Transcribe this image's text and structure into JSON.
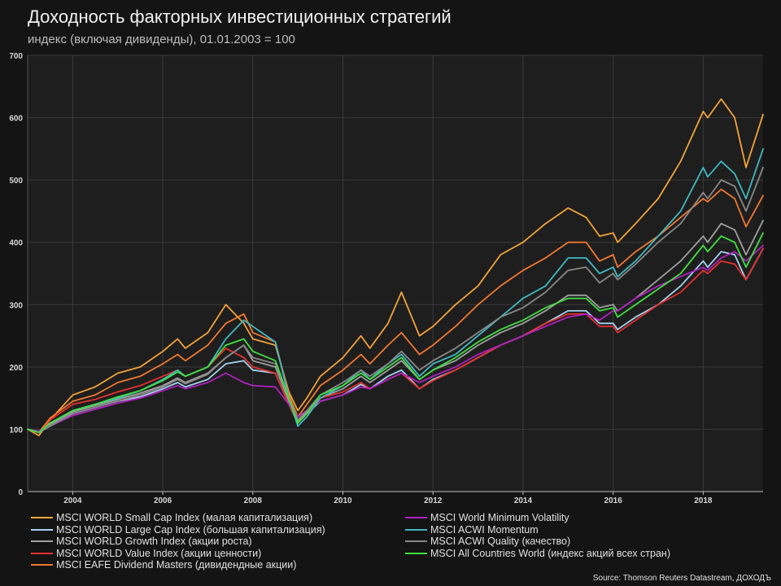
{
  "header": {
    "title": "Доходность факторных инвестиционных стратегий",
    "subtitle": "индекс (включая дивиденды), 01.01.2003 = 100"
  },
  "source": "Source: Thomson Reuters Datastream, ДОХОДЪ",
  "colors": {
    "background": "#141414",
    "plot_background": "#1e1e1e",
    "grid": "#3a3a3a"
  },
  "chart_data": {
    "type": "line",
    "title": "Доходность факторных инвестиционных стратегий",
    "subtitle": "индекс (включая дивиденды), 01.01.2003 = 100",
    "xlabel": "",
    "ylabel": "",
    "xlim": [
      2003.0,
      2019.33
    ],
    "ylim": [
      0,
      700
    ],
    "yticks": [
      0,
      100,
      200,
      300,
      400,
      500,
      600,
      700
    ],
    "xticks": [
      2004,
      2006,
      2008,
      2010,
      2012,
      2014,
      2016,
      2018
    ],
    "grid": true,
    "legend_position": "bottom",
    "x": [
      2003.0,
      2003.25,
      2003.5,
      2004.0,
      2004.5,
      2005.0,
      2005.5,
      2006.0,
      2006.33,
      2006.5,
      2007.0,
      2007.4,
      2007.8,
      2008.0,
      2008.5,
      2008.8,
      2009.0,
      2009.2,
      2009.5,
      2010.0,
      2010.4,
      2010.6,
      2011.0,
      2011.3,
      2011.7,
      2012.0,
      2012.5,
      2013.0,
      2013.5,
      2014.0,
      2014.5,
      2015.0,
      2015.4,
      2015.7,
      2016.0,
      2016.1,
      2016.5,
      2017.0,
      2017.5,
      2018.0,
      2018.1,
      2018.4,
      2018.7,
      2018.95,
      2019.33
    ],
    "series": [
      {
        "name": "MSCI WORLD Small Cap Index (малая капитализация)",
        "color": "#f2a33a",
        "values": [
          100,
          90,
          115,
          155,
          168,
          190,
          200,
          225,
          245,
          230,
          255,
          300,
          270,
          245,
          235,
          160,
          130,
          150,
          185,
          215,
          250,
          230,
          270,
          320,
          250,
          265,
          300,
          330,
          380,
          400,
          430,
          455,
          440,
          410,
          415,
          400,
          430,
          470,
          530,
          610,
          600,
          630,
          600,
          520,
          605
        ]
      },
      {
        "name": "MSCI WORLD Large Cap Index (большая капитализация)",
        "color": "#a6d4f2",
        "values": [
          100,
          95,
          105,
          125,
          135,
          145,
          152,
          165,
          175,
          168,
          180,
          205,
          210,
          195,
          190,
          140,
          110,
          125,
          145,
          155,
          172,
          165,
          185,
          195,
          165,
          180,
          195,
          215,
          235,
          250,
          270,
          290,
          290,
          270,
          270,
          260,
          280,
          300,
          330,
          370,
          360,
          385,
          380,
          340,
          390
        ]
      },
      {
        "name": "MSCI WORLD Growth Index (акции роста)",
        "color": "#a0a0a0",
        "values": [
          100,
          95,
          108,
          128,
          138,
          148,
          158,
          170,
          182,
          175,
          190,
          215,
          235,
          210,
          200,
          145,
          112,
          128,
          150,
          165,
          185,
          175,
          195,
          210,
          180,
          195,
          210,
          235,
          255,
          270,
          290,
          315,
          315,
          295,
          300,
          290,
          310,
          340,
          370,
          410,
          400,
          430,
          420,
          380,
          435
        ]
      },
      {
        "name": "MSCI WORLD Value Index (акции ценности)",
        "color": "#e53030",
        "values": [
          100,
          95,
          115,
          140,
          148,
          160,
          170,
          185,
          195,
          185,
          200,
          230,
          215,
          200,
          190,
          140,
          110,
          125,
          150,
          160,
          175,
          165,
          180,
          190,
          165,
          178,
          195,
          215,
          235,
          250,
          270,
          285,
          285,
          265,
          265,
          255,
          275,
          300,
          320,
          355,
          350,
          370,
          365,
          340,
          390
        ]
      },
      {
        "name": "MSCI EAFE Dividend Masters (дивидендные акции)",
        "color": "#f07830",
        "values": [
          100,
          95,
          118,
          145,
          155,
          175,
          185,
          205,
          220,
          210,
          235,
          270,
          285,
          255,
          240,
          155,
          120,
          140,
          170,
          195,
          220,
          205,
          235,
          255,
          220,
          235,
          265,
          300,
          330,
          355,
          375,
          400,
          400,
          370,
          380,
          360,
          385,
          410,
          440,
          470,
          465,
          485,
          470,
          425,
          475
        ]
      },
      {
        "name": "MSCI World Minimum Volatility",
        "color": "#b020c0",
        "values": [
          100,
          97,
          105,
          122,
          132,
          142,
          150,
          162,
          170,
          165,
          175,
          190,
          175,
          170,
          168,
          140,
          120,
          130,
          145,
          155,
          168,
          165,
          180,
          190,
          175,
          185,
          200,
          220,
          235,
          250,
          265,
          280,
          285,
          275,
          290,
          290,
          310,
          330,
          345,
          360,
          355,
          375,
          385,
          370,
          395
        ]
      },
      {
        "name": "MSCI ACWI Momentum",
        "color": "#40b8c0",
        "values": [
          100,
          95,
          110,
          130,
          140,
          150,
          162,
          180,
          195,
          185,
          200,
          245,
          275,
          265,
          240,
          150,
          105,
          120,
          150,
          170,
          195,
          180,
          205,
          220,
          185,
          205,
          220,
          250,
          280,
          310,
          330,
          375,
          375,
          350,
          360,
          345,
          370,
          410,
          450,
          520,
          505,
          530,
          510,
          470,
          550
        ]
      },
      {
        "name": "MSCI ACWI Quality (качество)",
        "color": "#888888",
        "values": [
          100,
          95,
          105,
          125,
          135,
          145,
          155,
          168,
          180,
          173,
          188,
          215,
          235,
          215,
          205,
          150,
          115,
          130,
          155,
          175,
          195,
          185,
          205,
          225,
          195,
          210,
          230,
          255,
          280,
          295,
          320,
          355,
          360,
          335,
          350,
          340,
          365,
          400,
          430,
          480,
          470,
          500,
          490,
          450,
          520
        ]
      },
      {
        "name": "MSCI All Countries World (индекс акций всех стран)",
        "color": "#40e040",
        "values": [
          100,
          95,
          110,
          130,
          140,
          152,
          162,
          178,
          192,
          185,
          200,
          235,
          245,
          225,
          210,
          150,
          110,
          125,
          155,
          170,
          190,
          180,
          200,
          215,
          180,
          195,
          215,
          240,
          260,
          275,
          295,
          310,
          310,
          290,
          295,
          280,
          300,
          325,
          350,
          395,
          385,
          410,
          400,
          360,
          415
        ]
      }
    ]
  }
}
